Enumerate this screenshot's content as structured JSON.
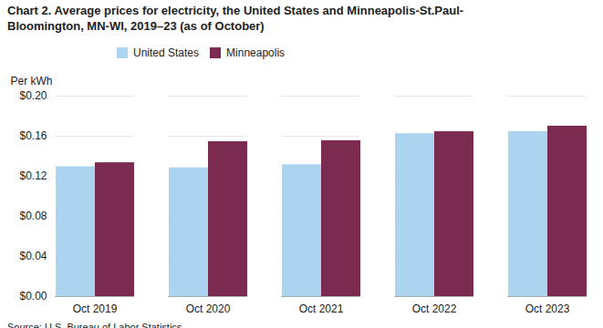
{
  "chart_data": {
    "type": "bar",
    "title": "Chart 2. Average prices for electricity, the United States and Minneapolis-St.Paul-\nBloomington, MN-WI, 2019–23 (as of October)",
    "ylabel": "Per kWh",
    "source": "Source: U.S. Bureau of Labor Statistics.",
    "categories": [
      "Oct 2019",
      "Oct 2020",
      "Oct 2021",
      "Oct 2022",
      "Oct 2023"
    ],
    "series": [
      {
        "name": "United States",
        "color": "#aad4f0",
        "values": [
          0.1295,
          0.1285,
          0.1315,
          0.1625,
          0.1645
        ]
      },
      {
        "name": "Minneapolis",
        "color": "#7b2a50",
        "values": [
          0.1335,
          0.1545,
          0.1555,
          0.1645,
          0.17
        ]
      }
    ],
    "ylim": [
      0,
      0.2
    ],
    "yticks": [
      {
        "value": 0.0,
        "label": "$0.00"
      },
      {
        "value": 0.04,
        "label": "$0.04"
      },
      {
        "value": 0.08,
        "label": "$0.08"
      },
      {
        "value": 0.12,
        "label": "$0.12"
      },
      {
        "value": 0.16,
        "label": "$0.16"
      },
      {
        "value": 0.2,
        "label": "$0.20"
      }
    ],
    "grid": true,
    "legend": "top"
  }
}
